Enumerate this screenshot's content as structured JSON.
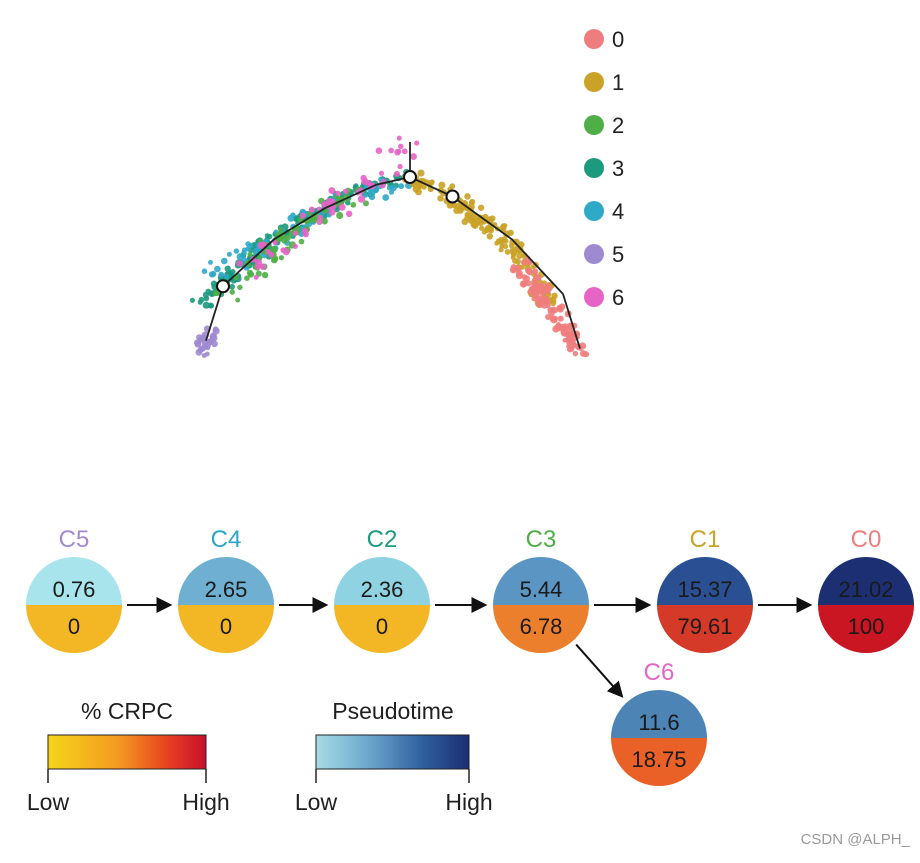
{
  "chart_data": [
    {
      "type": "scatter",
      "title": "",
      "xlabel": "",
      "ylabel": "",
      "legend_position": "top-right",
      "legend": [
        "0",
        "1",
        "2",
        "3",
        "4",
        "5",
        "6"
      ],
      "colors": {
        "0": "#ef7d7d",
        "1": "#c9a227",
        "2": "#4fae45",
        "3": "#1d9a7e",
        "4": "#2fa9c8",
        "5": "#9e8ad1",
        "6": "#e564c6"
      },
      "trajectory_nodes": [
        {
          "id": "root",
          "x": -1.1,
          "y": -0.4
        },
        {
          "id": "branch1",
          "x": 0.0,
          "y": 1.0
        },
        {
          "id": "branch2",
          "x": 0.25,
          "y": 0.75
        }
      ],
      "trajectory_path_segments": [
        {
          "name": "left-arm",
          "points": [
            [
              -1.2,
              -1.1
            ],
            [
              -1.1,
              -0.4
            ],
            [
              -0.8,
              0.2
            ],
            [
              -0.5,
              0.6
            ],
            [
              -0.2,
              0.9
            ],
            [
              0.0,
              1.0
            ]
          ]
        },
        {
          "name": "top-stem",
          "points": [
            [
              0.0,
              1.0
            ],
            [
              0.0,
              1.45
            ]
          ]
        },
        {
          "name": "right-arm",
          "points": [
            [
              0.0,
              1.0
            ],
            [
              0.25,
              0.75
            ],
            [
              0.6,
              0.2
            ],
            [
              0.9,
              -0.5
            ],
            [
              1.0,
              -1.2
            ]
          ]
        }
      ]
    },
    {
      "type": "flow-diagram",
      "legend_gradients": [
        {
          "title": "% CRPC",
          "low_label": "Low",
          "high_label": "High",
          "colors": [
            "#f5d51b",
            "#f39a21",
            "#e8421f",
            "#c8102e"
          ]
        },
        {
          "title": "Pseudotime",
          "low_label": "Low",
          "high_label": "High",
          "colors": [
            "#a7dbe5",
            "#6aa6cc",
            "#2f5f9e",
            "#1a2f72"
          ]
        }
      ],
      "nodes": [
        {
          "id": "C5",
          "label": "C5",
          "label_color": "#a18ad1",
          "pseudotime": "0.76",
          "crpc": "0",
          "top_color": "#a8e4ec",
          "bottom_color": "#f3b726"
        },
        {
          "id": "C4",
          "label": "C4",
          "label_color": "#2aa6c8",
          "pseudotime": "2.65",
          "crpc": "0",
          "top_color": "#6fb0d2",
          "bottom_color": "#f3b726"
        },
        {
          "id": "C2",
          "label": "C2",
          "label_color": "#1e9a7f",
          "pseudotime": "2.36",
          "crpc": "0",
          "top_color": "#8fd2e2",
          "bottom_color": "#f3b726"
        },
        {
          "id": "C3",
          "label": "C3",
          "label_color": "#4fae45",
          "pseudotime": "5.44",
          "crpc": "6.78",
          "top_color": "#5b95c4",
          "bottom_color": "#ec7f2c"
        },
        {
          "id": "C1",
          "label": "C1",
          "label_color": "#c9a227",
          "pseudotime": "15.37",
          "crpc": "79.61",
          "top_color": "#2a4f93",
          "bottom_color": "#d53a28"
        },
        {
          "id": "C0",
          "label": "C0",
          "label_color": "#ef7d7d",
          "pseudotime": "21.02",
          "crpc": "100",
          "top_color": "#1d2f73",
          "bottom_color": "#c91622"
        },
        {
          "id": "C6",
          "label": "C6",
          "label_color": "#e564c6",
          "pseudotime": "11.6",
          "crpc": "18.75",
          "top_color": "#4d84b6",
          "bottom_color": "#ea6128"
        }
      ],
      "edges": [
        [
          "C5",
          "C4"
        ],
        [
          "C4",
          "C2"
        ],
        [
          "C2",
          "C3"
        ],
        [
          "C3",
          "C1"
        ],
        [
          "C1",
          "C0"
        ],
        [
          "C3",
          "C6"
        ]
      ]
    }
  ],
  "footer": {
    "watermark": "CSDN @ALPH_"
  }
}
